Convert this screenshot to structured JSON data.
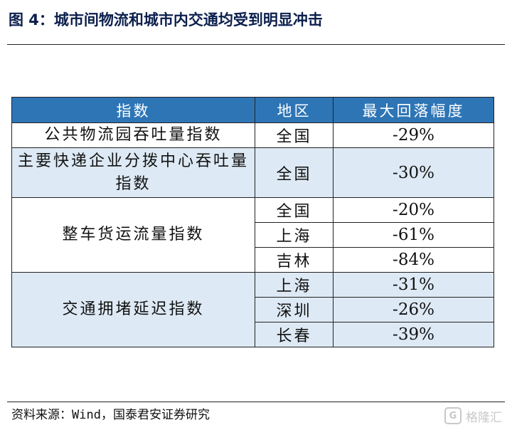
{
  "title": "图 4：城市间物流和城市内交通均受到明显冲击",
  "table": {
    "headers": [
      "指数",
      "地区",
      "最大回落幅度"
    ],
    "groups": [
      {
        "index": "公共物流园吞吐量指数",
        "rows": [
          {
            "region": "全国",
            "value": "-29%"
          }
        ]
      },
      {
        "index": "主要快递企业分拨中心吞吐量指数",
        "rows": [
          {
            "region": "全国",
            "value": "-30%"
          }
        ]
      },
      {
        "index": "整车货运流量指数",
        "rows": [
          {
            "region": "全国",
            "value": "-20%"
          },
          {
            "region": "上海",
            "value": "-61%"
          },
          {
            "region": "吉林",
            "value": "-84%"
          }
        ]
      },
      {
        "index": "交通拥堵延迟指数",
        "rows": [
          {
            "region": "上海",
            "value": "-31%"
          },
          {
            "region": "深圳",
            "value": "-26%"
          },
          {
            "region": "长春",
            "value": "-39%"
          }
        ]
      }
    ]
  },
  "source": "资料来源：Wind，国泰君安证券研究",
  "watermark": {
    "logo": "G",
    "text": "格隆汇"
  },
  "colors": {
    "header_bg": "#2e75b6",
    "band_blue": "#dde9f4",
    "title": "#0b1f4d"
  }
}
